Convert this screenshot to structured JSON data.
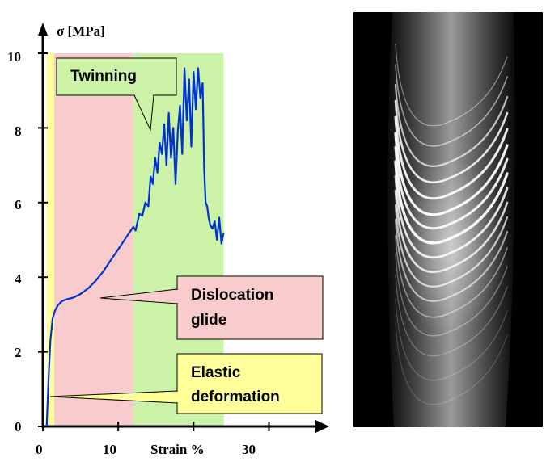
{
  "chart_data": {
    "type": "line",
    "ylabel": "σ [MPa]",
    "xlabel": "Strain %",
    "xlim": [
      0,
      38
    ],
    "ylim": [
      0,
      10
    ],
    "x_ticks": [
      "0",
      "10",
      "30"
    ],
    "y_ticks": [
      "0",
      "2",
      "4",
      "6",
      "8",
      "10"
    ],
    "regions": [
      {
        "label": "",
        "x_start": 0.5,
        "x_end": 1.5,
        "color": "#ffff99"
      },
      {
        "label": "",
        "x_start": 1.5,
        "x_end": 12.0,
        "color": "#f8cccc"
      },
      {
        "label": "",
        "x_start": 12.0,
        "x_end": 24.0,
        "color": "#ccf2a8"
      }
    ],
    "series": [
      {
        "color": "#0033cc",
        "x": [
          0.5,
          0.6,
          0.8,
          1.0,
          1.3,
          1.6,
          2.0,
          2.5,
          3.0,
          4.0,
          5.0,
          6.0,
          7.0,
          8.0,
          9.0,
          10.0,
          11.0,
          12.0,
          12.3,
          12.8,
          13.2,
          13.6,
          14.0,
          14.3,
          14.6,
          14.9,
          15.2,
          15.5,
          15.8,
          16.1,
          16.4,
          16.7,
          17.0,
          17.3,
          17.6,
          17.9,
          18.2,
          18.5,
          18.8,
          19.1,
          19.4,
          19.7,
          20.0,
          20.3,
          20.6,
          20.9,
          21.2,
          21.4,
          21.6,
          21.8,
          22.0,
          22.2,
          22.5,
          22.8,
          23.1,
          23.4,
          23.7,
          24.0
        ],
        "y": [
          0.0,
          0.5,
          1.5,
          2.3,
          2.9,
          3.1,
          3.25,
          3.35,
          3.4,
          3.45,
          3.55,
          3.7,
          3.9,
          4.15,
          4.45,
          4.75,
          5.05,
          5.35,
          5.25,
          5.7,
          5.65,
          6.0,
          5.9,
          6.7,
          6.5,
          7.2,
          6.8,
          7.6,
          7.3,
          8.1,
          7.0,
          8.4,
          7.2,
          8.0,
          6.5,
          7.9,
          8.6,
          7.3,
          9.6,
          8.2,
          9.3,
          7.5,
          9.5,
          8.5,
          9.6,
          8.8,
          9.2,
          6.9,
          6.0,
          5.9,
          5.6,
          5.4,
          5.3,
          5.5,
          5.0,
          5.6,
          4.9,
          5.2
        ]
      }
    ],
    "annotations": [
      {
        "text": "Twinning",
        "color": "#ccf2a8"
      },
      {
        "text": "Dislocation glide",
        "color": "#f8cccc"
      },
      {
        "text": "Elastic deformation",
        "color": "#ffff99"
      }
    ]
  },
  "callouts": {
    "twinning": "Twinning",
    "dislocation_line1": "Dislocation",
    "dislocation_line2": "glide",
    "elastic_line1": "Elastic",
    "elastic_line2": "deformation"
  },
  "photo": {
    "icon": "grayscale-micrograph-of-twinned-cylinder"
  }
}
